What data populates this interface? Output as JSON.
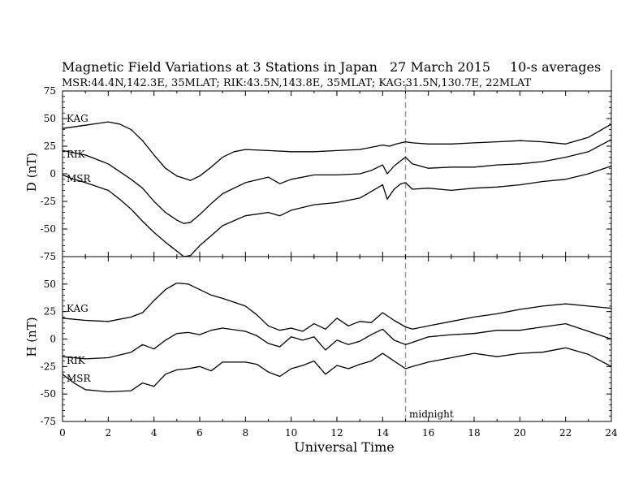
{
  "header": {
    "title": "Magnetic Field Variations at 3 Stations in Japan",
    "date": "27  March    2015",
    "averaging": "10-s averages",
    "stations": "MSR:44.4N,142.3E, 35MLAT;   RIK:43.5N,143.8E, 35MLAT;   KAG:31.5N,130.7E, 22MLAT"
  },
  "chart_data": [
    {
      "type": "line",
      "ylabel": "D (nT)",
      "ylim": [
        -75,
        75
      ],
      "yticks": [
        75,
        50,
        25,
        0,
        -25,
        -50,
        -75
      ],
      "xlim": [
        0,
        24
      ],
      "series": [
        {
          "name": "KAG",
          "x": [
            0,
            1,
            2,
            2.5,
            3,
            3.5,
            4,
            4.5,
            5,
            5.3,
            5.6,
            6,
            6.5,
            7,
            7.5,
            8,
            9,
            10,
            11,
            12,
            13,
            13.5,
            14,
            14.3,
            14.6,
            15,
            15.3,
            16,
            17,
            18,
            19,
            20,
            21,
            22,
            23,
            24
          ],
          "y": [
            41,
            44,
            47,
            45,
            40,
            30,
            17,
            5,
            -2,
            -4,
            -6,
            -2,
            6,
            15,
            20,
            22,
            21,
            20,
            20,
            21,
            22,
            24,
            26,
            25,
            27,
            29,
            28,
            27,
            27,
            28,
            29,
            30,
            29,
            27,
            33,
            45
          ]
        },
        {
          "name": "RIK",
          "x": [
            0,
            1,
            2,
            2.5,
            3,
            3.5,
            4,
            4.5,
            5,
            5.3,
            5.6,
            6,
            6.5,
            7,
            8,
            9,
            9.5,
            10,
            11,
            12,
            13,
            13.5,
            14,
            14.2,
            14.5,
            14.8,
            15,
            15.3,
            16,
            17,
            18,
            19,
            20,
            21,
            22,
            23,
            24
          ],
          "y": [
            21,
            17,
            9,
            2,
            -5,
            -13,
            -25,
            -35,
            -42,
            -45,
            -44,
            -37,
            -27,
            -18,
            -8,
            -3,
            -9,
            -5,
            -1,
            -1,
            0,
            3,
            8,
            0,
            7,
            12,
            15,
            9,
            5,
            6,
            6,
            8,
            9,
            11,
            15,
            20,
            31
          ]
        },
        {
          "name": "MSR",
          "x": [
            0,
            0.5,
            1,
            2,
            2.5,
            3,
            3.5,
            4,
            4.5,
            5,
            5.3,
            5.6,
            6,
            6.5,
            7,
            8,
            9,
            9.5,
            10,
            11,
            12,
            13,
            13.5,
            14,
            14.2,
            14.5,
            14.8,
            15,
            15.3,
            16,
            17,
            18,
            19,
            20,
            21,
            22,
            23,
            24
          ],
          "y": [
            -1,
            -5,
            -8,
            -15,
            -23,
            -32,
            -43,
            -53,
            -62,
            -70,
            -75,
            -74,
            -65,
            -56,
            -47,
            -38,
            -35,
            -38,
            -33,
            -28,
            -26,
            -22,
            -16,
            -10,
            -23,
            -14,
            -9,
            -8,
            -14,
            -13,
            -15,
            -13,
            -12,
            -10,
            -7,
            -5,
            0,
            7
          ]
        }
      ],
      "labels": [
        "KAG",
        "RIK",
        "MSR"
      ]
    },
    {
      "type": "line",
      "ylabel": "H (nT)",
      "xlabel": "Universal Time",
      "ylim": [
        -75,
        75
      ],
      "yticks": [
        50,
        25,
        0,
        -25,
        -50,
        -75
      ],
      "xlim": [
        0,
        24
      ],
      "xticks": [
        0,
        2,
        4,
        6,
        8,
        10,
        12,
        14,
        16,
        18,
        20,
        22,
        24
      ],
      "series": [
        {
          "name": "KAG",
          "x": [
            0,
            1,
            2,
            3,
            3.5,
            4,
            4.5,
            5,
            5.5,
            6,
            6.5,
            7,
            8,
            8.5,
            9,
            9.5,
            10,
            10.5,
            11,
            11.5,
            12,
            12.5,
            13,
            13.5,
            14,
            14.5,
            15,
            15.3,
            16,
            17,
            18,
            19,
            20,
            21,
            22,
            23,
            24
          ],
          "y": [
            19,
            17,
            16,
            20,
            24,
            35,
            45,
            51,
            50,
            45,
            40,
            37,
            30,
            22,
            12,
            8,
            10,
            7,
            14,
            9,
            19,
            12,
            16,
            15,
            24,
            17,
            11,
            9,
            12,
            16,
            20,
            23,
            27,
            30,
            32,
            30,
            28
          ]
        },
        {
          "name": "RIK",
          "x": [
            0,
            1,
            2,
            3,
            3.5,
            4,
            4.5,
            5,
            5.5,
            6,
            6.5,
            7,
            8,
            8.5,
            9,
            9.5,
            10,
            10.5,
            11,
            11.5,
            12,
            12.5,
            13,
            13.5,
            14,
            14.5,
            15,
            15.3,
            16,
            17,
            18,
            19,
            20,
            21,
            22,
            23,
            24
          ],
          "y": [
            -16,
            -18,
            -17,
            -12,
            -5,
            -9,
            -1,
            5,
            6,
            4,
            8,
            10,
            7,
            3,
            -4,
            -7,
            2,
            -1,
            2,
            -10,
            -1,
            -5,
            -2,
            4,
            9,
            -1,
            -5,
            -3,
            2,
            4,
            5,
            8,
            8,
            11,
            14,
            7,
            0
          ]
        },
        {
          "name": "MSR",
          "x": [
            0,
            0.5,
            1,
            2,
            3,
            3.5,
            4,
            4.5,
            5,
            5.5,
            6,
            6.5,
            7,
            8,
            8.5,
            9,
            9.5,
            10,
            10.5,
            11,
            11.5,
            12,
            12.5,
            13,
            13.5,
            14,
            14.5,
            15,
            15.3,
            16,
            17,
            18,
            19,
            20,
            21,
            22,
            23,
            24
          ],
          "y": [
            -32,
            -40,
            -46,
            -48,
            -47,
            -40,
            -43,
            -32,
            -28,
            -27,
            -25,
            -29,
            -21,
            -21,
            -23,
            -30,
            -34,
            -27,
            -24,
            -20,
            -32,
            -24,
            -27,
            -23,
            -20,
            -13,
            -20,
            -27,
            -25,
            -21,
            -17,
            -13,
            -16,
            -13,
            -12,
            -8,
            -14,
            -25
          ]
        }
      ],
      "labels": [
        "KAG",
        "RIK",
        "MSR"
      ]
    }
  ],
  "annotations": {
    "midnight": {
      "x": 15,
      "label": "midnight"
    }
  }
}
